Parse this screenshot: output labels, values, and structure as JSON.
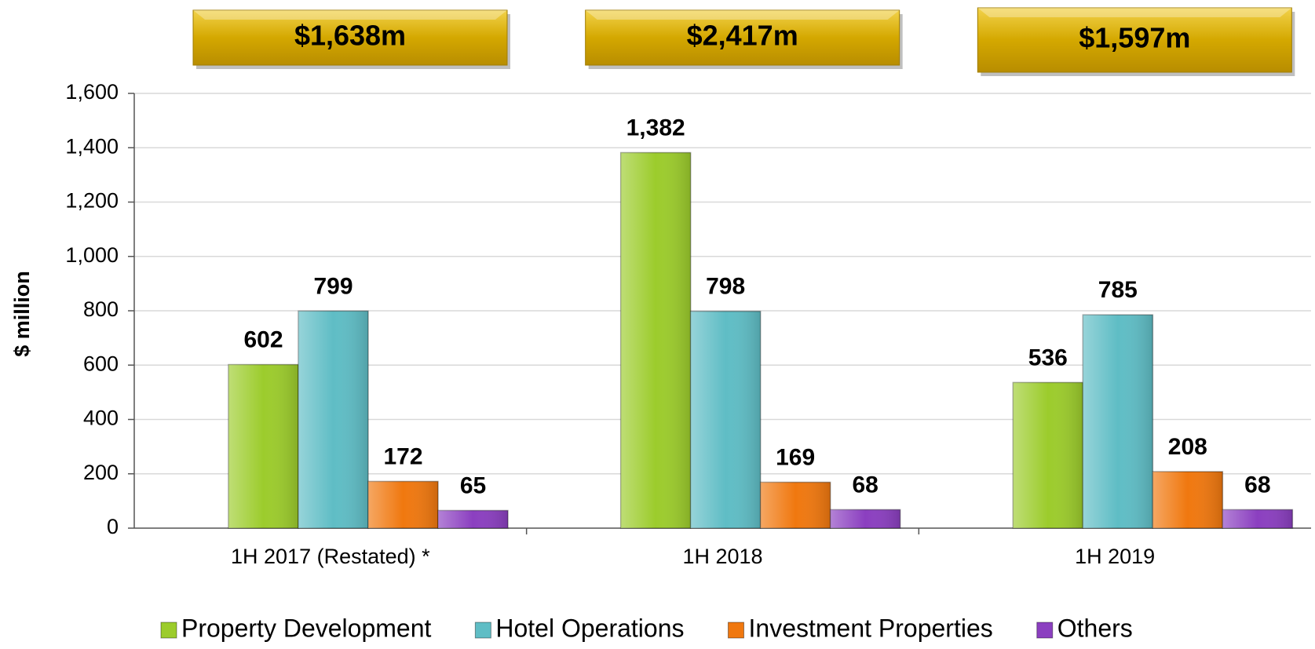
{
  "chart_data": {
    "type": "bar",
    "y_label": "$ million",
    "categories": [
      "1H 2017 (Restated) *",
      "1H 2018",
      "1H 2019"
    ],
    "annotations": [
      "$1,638m",
      "$2,417m",
      "$1,597m"
    ],
    "series": [
      {
        "name": "Property Development",
        "color": "#9ccc2c",
        "values": [
          602,
          1382,
          536
        ],
        "value_labels": [
          "602",
          "1,382",
          "536"
        ]
      },
      {
        "name": "Hotel Operations",
        "color": "#5fbdc5",
        "values": [
          799,
          798,
          785
        ]
      },
      {
        "name": "Investment Properties",
        "color": "#f0780f",
        "values": [
          172,
          169,
          208
        ]
      },
      {
        "name": "Others",
        "color": "#8b3fc0",
        "values": [
          65,
          68,
          68
        ]
      }
    ],
    "ylim": [
      0,
      1600
    ],
    "yticks": [
      0,
      200,
      400,
      600,
      800,
      {
        "value": 1000,
        "label": "1,000"
      },
      {
        "value": 1200,
        "label": "1,200"
      },
      {
        "value": 1400,
        "label": "1,400"
      },
      {
        "value": 1600,
        "label": "1,600"
      }
    ],
    "grid": true,
    "legend": "bottom"
  }
}
